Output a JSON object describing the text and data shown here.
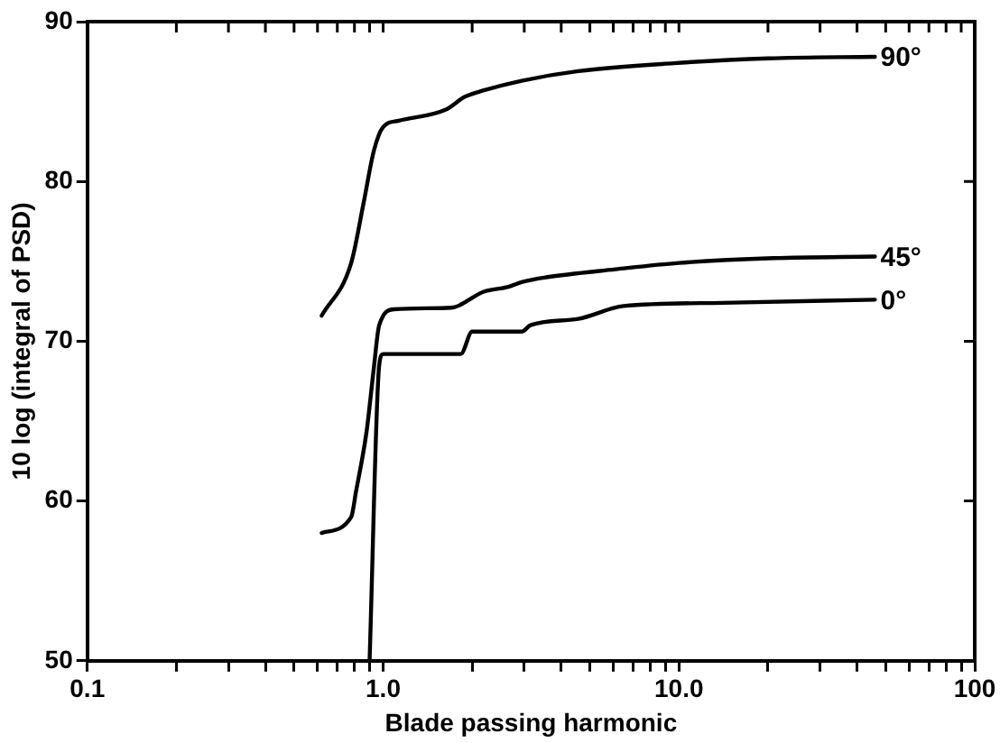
{
  "chart_data": {
    "type": "line",
    "xlabel": "Blade passing harmonic",
    "ylabel": "10 log (integral of PSD)",
    "log": "x",
    "xlim": [
      0.1,
      100
    ],
    "ylim": [
      50,
      90
    ],
    "xticks": [
      {
        "value": 0.1,
        "label": "0.1"
      },
      {
        "value": 0.2,
        "label": null
      },
      {
        "value": 0.3,
        "label": null
      },
      {
        "value": 0.4,
        "label": null
      },
      {
        "value": 0.5,
        "label": null
      },
      {
        "value": 0.6,
        "label": null
      },
      {
        "value": 0.7,
        "label": null
      },
      {
        "value": 0.8,
        "label": null
      },
      {
        "value": 0.9,
        "label": null
      },
      {
        "value": 1,
        "label": "1.0"
      },
      {
        "value": 2,
        "label": null
      },
      {
        "value": 3,
        "label": null
      },
      {
        "value": 4,
        "label": null
      },
      {
        "value": 5,
        "label": null
      },
      {
        "value": 6,
        "label": null
      },
      {
        "value": 7,
        "label": null
      },
      {
        "value": 8,
        "label": null
      },
      {
        "value": 9,
        "label": null
      },
      {
        "value": 10,
        "label": "10.0"
      },
      {
        "value": 20,
        "label": null
      },
      {
        "value": 30,
        "label": null
      },
      {
        "value": 40,
        "label": null
      },
      {
        "value": 50,
        "label": null
      },
      {
        "value": 60,
        "label": null
      },
      {
        "value": 70,
        "label": null
      },
      {
        "value": 80,
        "label": null
      },
      {
        "value": 90,
        "label": null
      },
      {
        "value": 100,
        "label": "100"
      }
    ],
    "yticks": [
      50,
      60,
      70,
      80,
      90
    ],
    "marker": "none",
    "line_style": "solid",
    "series": [
      {
        "name": "90°",
        "color": "#000000",
        "x": [
          0.62,
          0.78,
          0.86,
          0.93,
          1.0,
          1.13,
          1.63,
          1.89,
          2.19,
          2.94,
          4.57,
          9.6,
          20,
          46
        ],
        "values": [
          71.6,
          74.9,
          78.7,
          81.9,
          83.4,
          83.8,
          84.5,
          85.3,
          85.7,
          86.3,
          86.9,
          87.4,
          87.7,
          87.8
        ]
      },
      {
        "name": "45°",
        "color": "#000000",
        "x": [
          0.62,
          0.78,
          0.81,
          0.88,
          0.93,
          0.97,
          1.09,
          1.7,
          2.19,
          2.65,
          2.94,
          3.56,
          6.1,
          10,
          20.9,
          46
        ],
        "values": [
          58.0,
          59.0,
          60.6,
          64.4,
          68.3,
          71.0,
          72.0,
          72.1,
          73.1,
          73.4,
          73.7,
          74.0,
          74.5,
          74.9,
          75.2,
          75.3
        ]
      },
      {
        "name": "0°",
        "color": "#000000",
        "x": [
          0.9,
          0.97,
          1.0,
          1.83,
          2.0,
          2.94,
          3.15,
          4.57,
          6.5,
          14,
          46
        ],
        "values": [
          50,
          68.5,
          69.2,
          69.2,
          70.6,
          70.6,
          71.0,
          71.4,
          72.2,
          72.4,
          72.6
        ]
      }
    ]
  }
}
